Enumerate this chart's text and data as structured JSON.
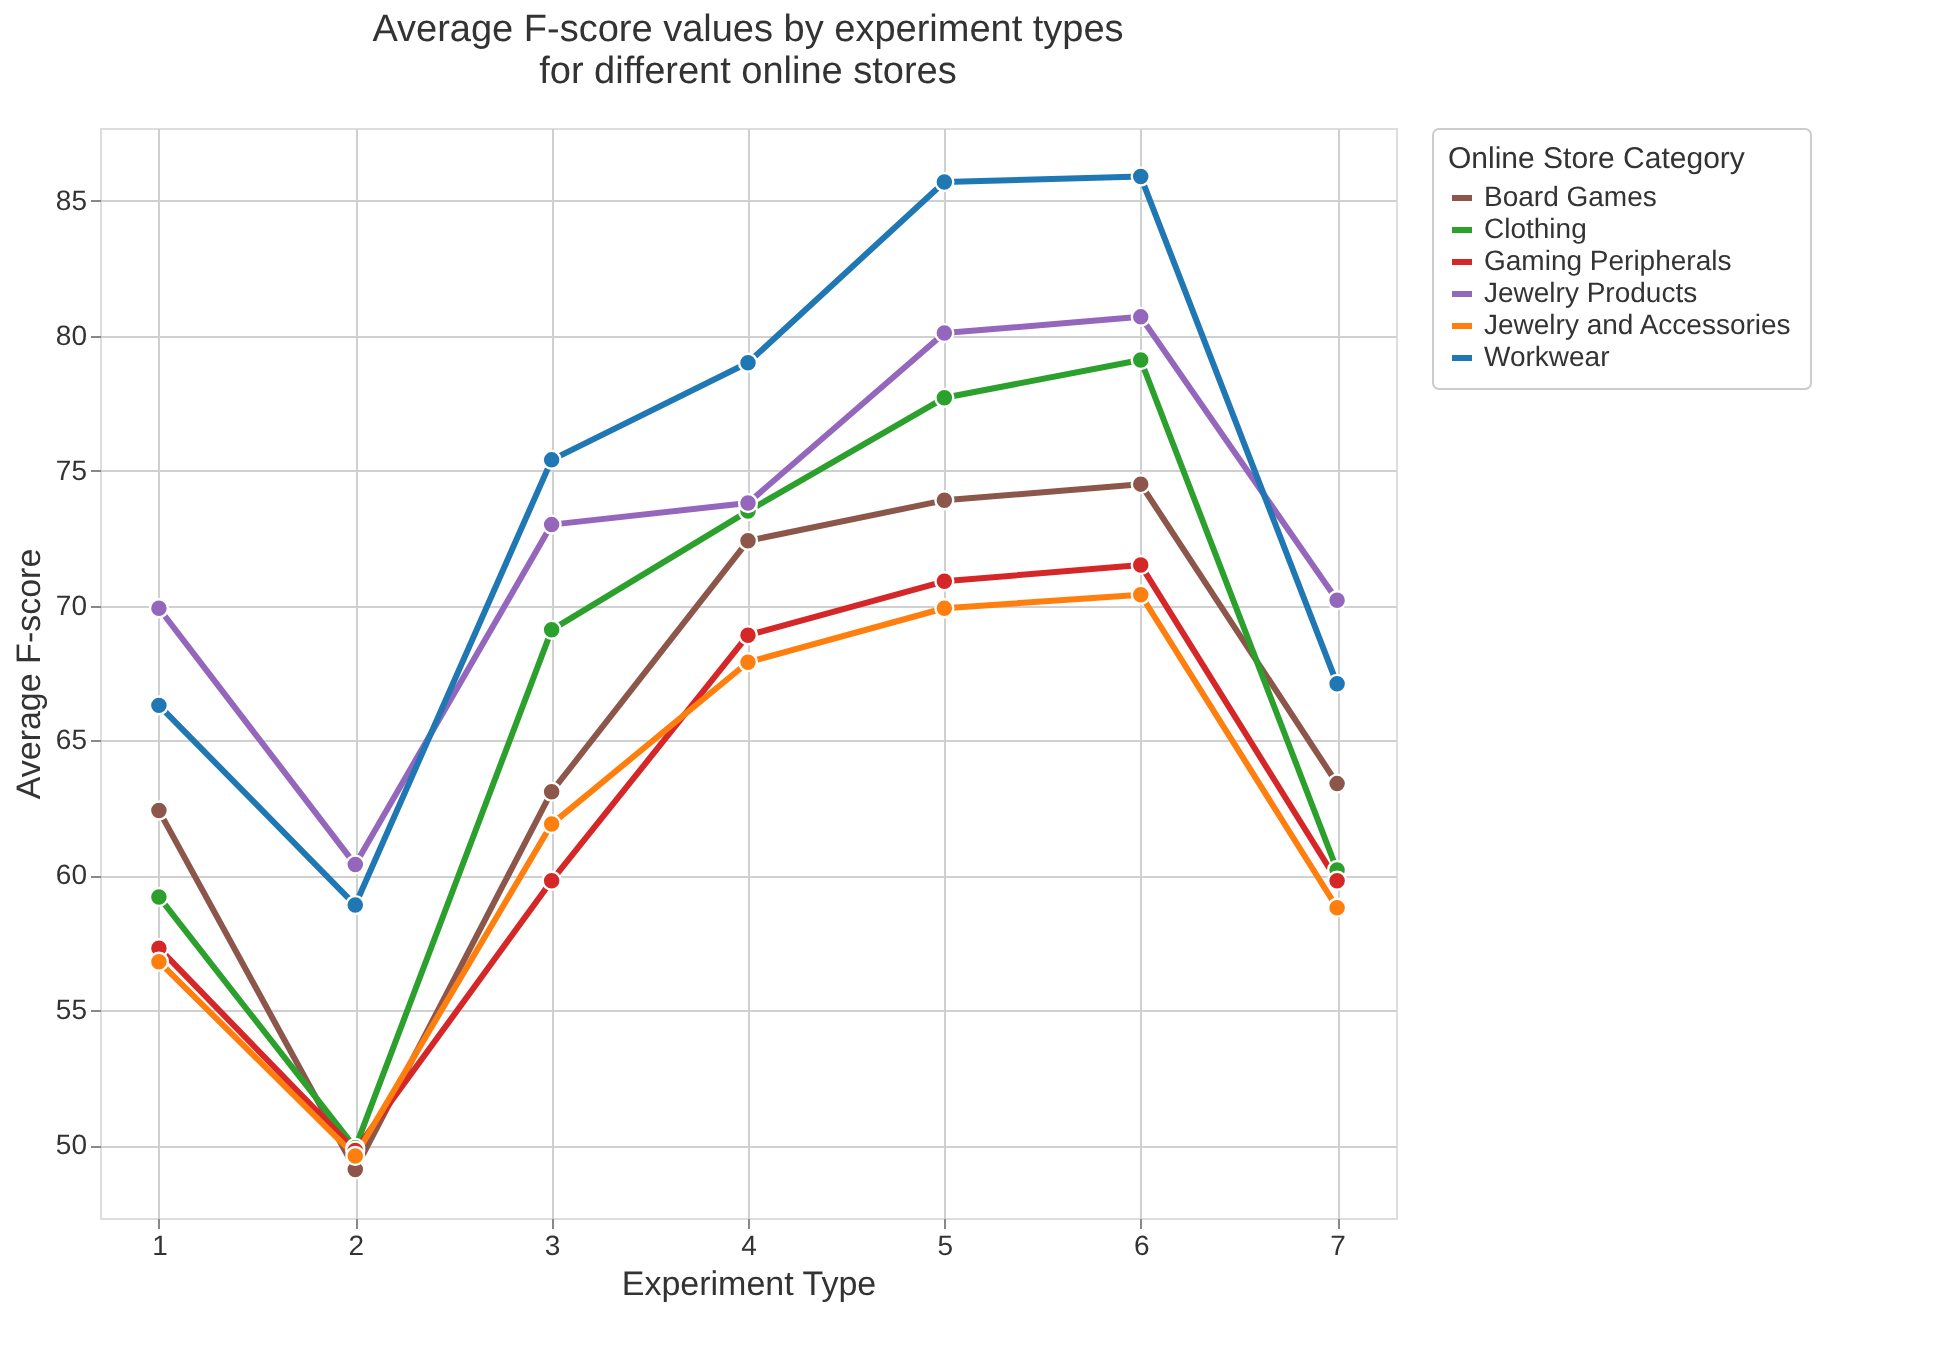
{
  "chart_data": {
    "type": "line",
    "title": [
      "Average F-score values by experiment types",
      "for different online stores"
    ],
    "xlabel": "Experiment Type",
    "ylabel": "Average F-score",
    "legend_title": "Online Store Category",
    "x": [
      1,
      2,
      3,
      4,
      5,
      6,
      7
    ],
    "series": [
      {
        "name": "Board Games",
        "color": "#8c564b",
        "values": [
          62.4,
          49.1,
          63.1,
          72.4,
          73.9,
          74.5,
          63.4
        ]
      },
      {
        "name": "Clothing",
        "color": "#2ca02c",
        "values": [
          59.2,
          49.9,
          69.1,
          73.5,
          77.7,
          79.1,
          60.2
        ]
      },
      {
        "name": "Gaming Peripherals",
        "color": "#d62728",
        "values": [
          57.3,
          49.8,
          59.8,
          68.9,
          70.9,
          71.5,
          59.8
        ]
      },
      {
        "name": "Jewelry Products",
        "color": "#9467bd",
        "values": [
          69.9,
          60.4,
          73.0,
          73.8,
          80.1,
          80.7,
          70.2
        ]
      },
      {
        "name": "Jewelry and Accessories",
        "color": "#ff7f0e",
        "values": [
          56.8,
          49.6,
          61.9,
          67.9,
          69.9,
          70.4,
          58.8
        ]
      },
      {
        "name": "Workwear",
        "color": "#1f77b4",
        "values": [
          66.3,
          58.9,
          75.4,
          79.0,
          85.7,
          85.9,
          67.1
        ]
      }
    ],
    "xlim": [
      0.7,
      7.3
    ],
    "xticks": [
      1,
      2,
      3,
      4,
      5,
      6,
      7
    ],
    "ylim": [
      47.3,
      87.7
    ],
    "yticks": [
      50,
      55,
      60,
      65,
      70,
      75,
      80,
      85
    ],
    "grid": true,
    "legend": "top right",
    "marker": "circle",
    "line_style": "solid"
  }
}
